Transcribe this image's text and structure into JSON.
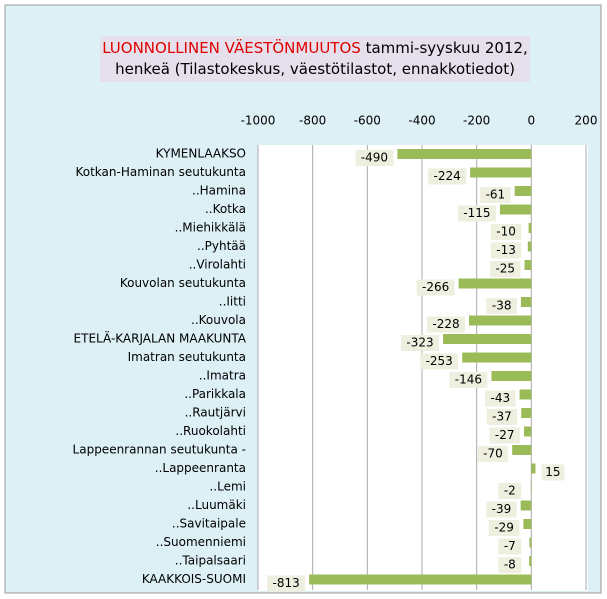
{
  "chart_data": {
    "type": "bar",
    "orientation": "horizontal",
    "title": [
      "LUONNOLLINEN VÄESTÖNMUUTOS",
      "tammi-syyskuu 2012, henkeä (Tilastokeskus, väestötilastot, ennakkotiedot)"
    ],
    "categories": [
      "KYMENLAAKSO",
      "Kotkan-Haminan seutukunta",
      "..Hamina",
      "..Kotka",
      "..Miehikkälä",
      "..Pyhtää",
      "..Virolahti",
      "Kouvolan seutukunta",
      "..Iitti",
      "..Kouvola",
      "ETELÄ-KARJALAN MAAKUNTA",
      "Imatran seutukunta",
      "..Imatra",
      "..Parikkala",
      "..Rautjärvi",
      "..Ruokolahti",
      "Lappeenrannan seutukunta -",
      "..Lappeenranta",
      "..Lemi",
      "..Luumäki",
      "..Savitaipale",
      "..Suomenniemi",
      "..Taipalsaari",
      "KAAKKOIS-SUOMI"
    ],
    "values": [
      -490,
      -224,
      -61,
      -115,
      -10,
      -13,
      -25,
      -266,
      -38,
      -228,
      -323,
      -253,
      -146,
      -43,
      -37,
      -27,
      -70,
      15,
      -2,
      -39,
      -29,
      -7,
      -8,
      -813
    ],
    "color": "#9bbb59",
    "xlim": [
      -1000,
      200
    ],
    "xticks": [
      -1000,
      -800,
      -600,
      -400,
      -200,
      0,
      200
    ],
    "grid": true
  }
}
